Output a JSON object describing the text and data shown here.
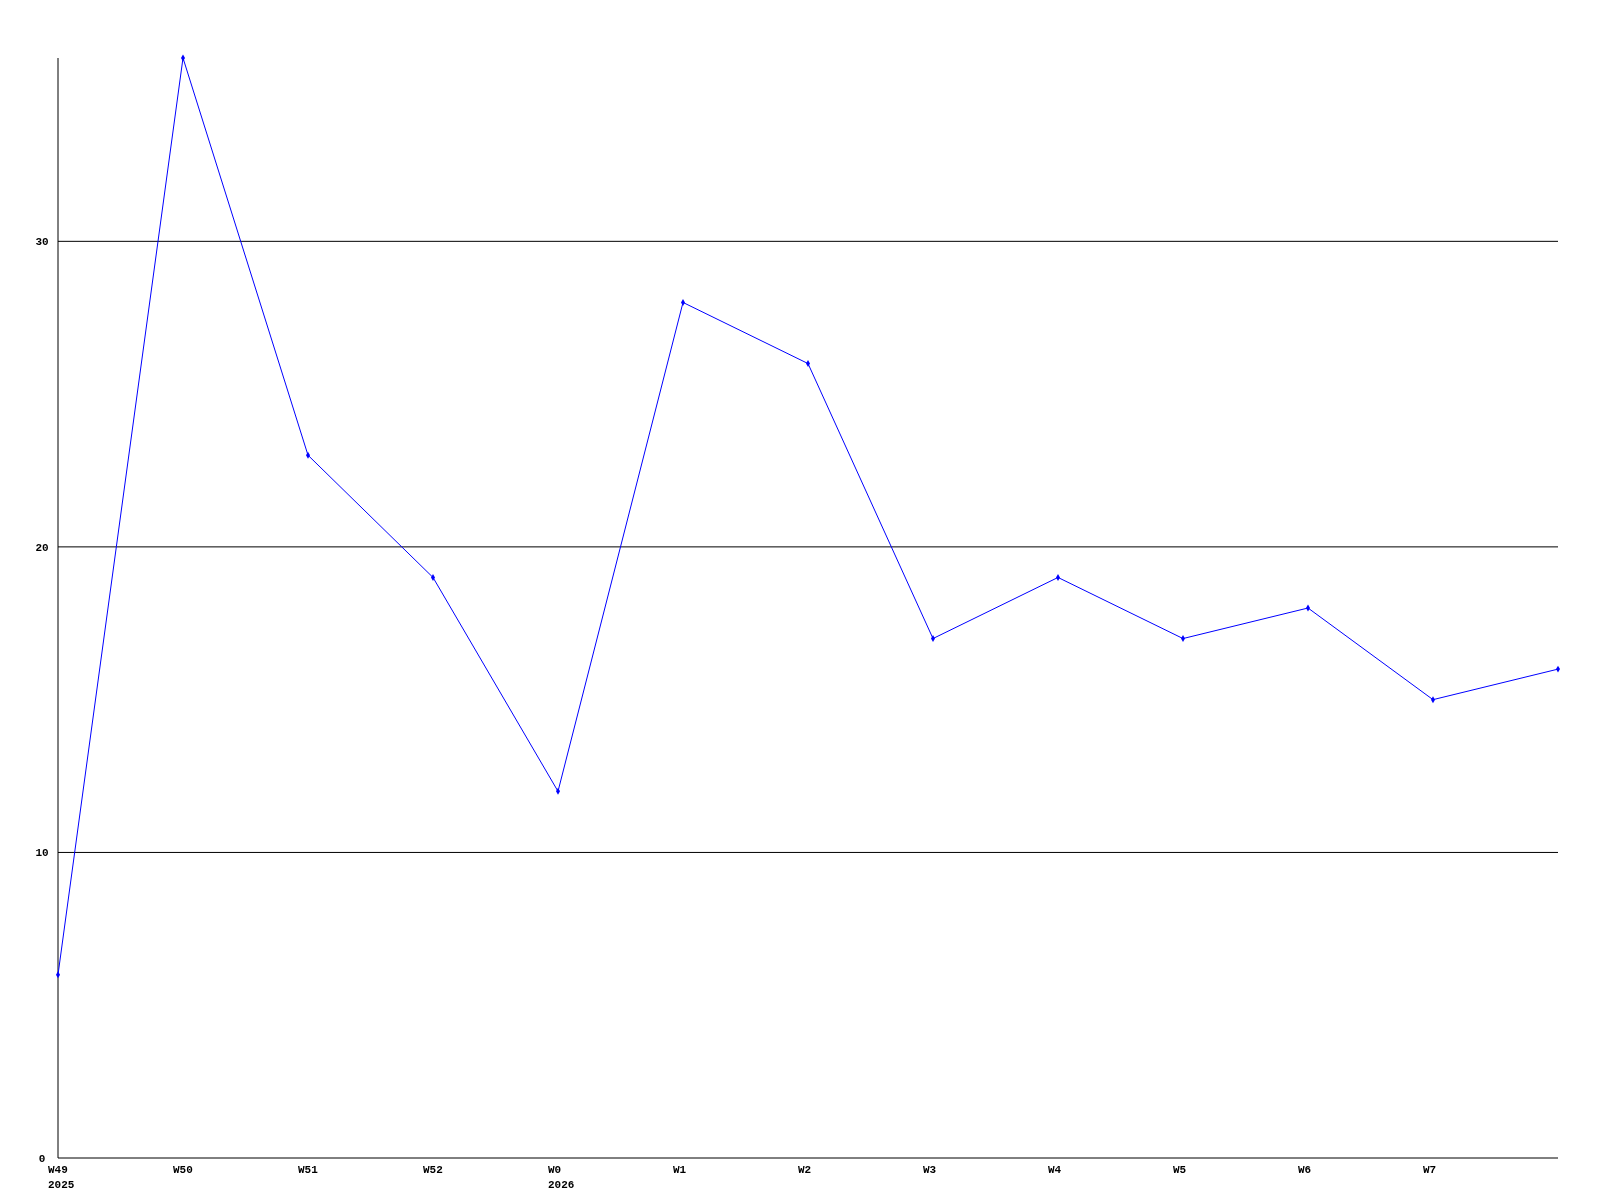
{
  "chart_data": {
    "type": "line",
    "categories": [
      "W49\n2025",
      "W50",
      "W51",
      "W52",
      "W0\n2026",
      "W1",
      "W2",
      "W3",
      "W4",
      "W5",
      "W6",
      "W7",
      null
    ],
    "series": [
      {
        "color": "#0000ff",
        "values": [
          6,
          36,
          23,
          19,
          12,
          28,
          26,
          17,
          19,
          17,
          18,
          15,
          16
        ]
      }
    ],
    "ylim": [
      0,
      36
    ],
    "yticks": [
      0,
      10,
      20,
      30
    ],
    "grid": "y",
    "marker": "diamond"
  }
}
